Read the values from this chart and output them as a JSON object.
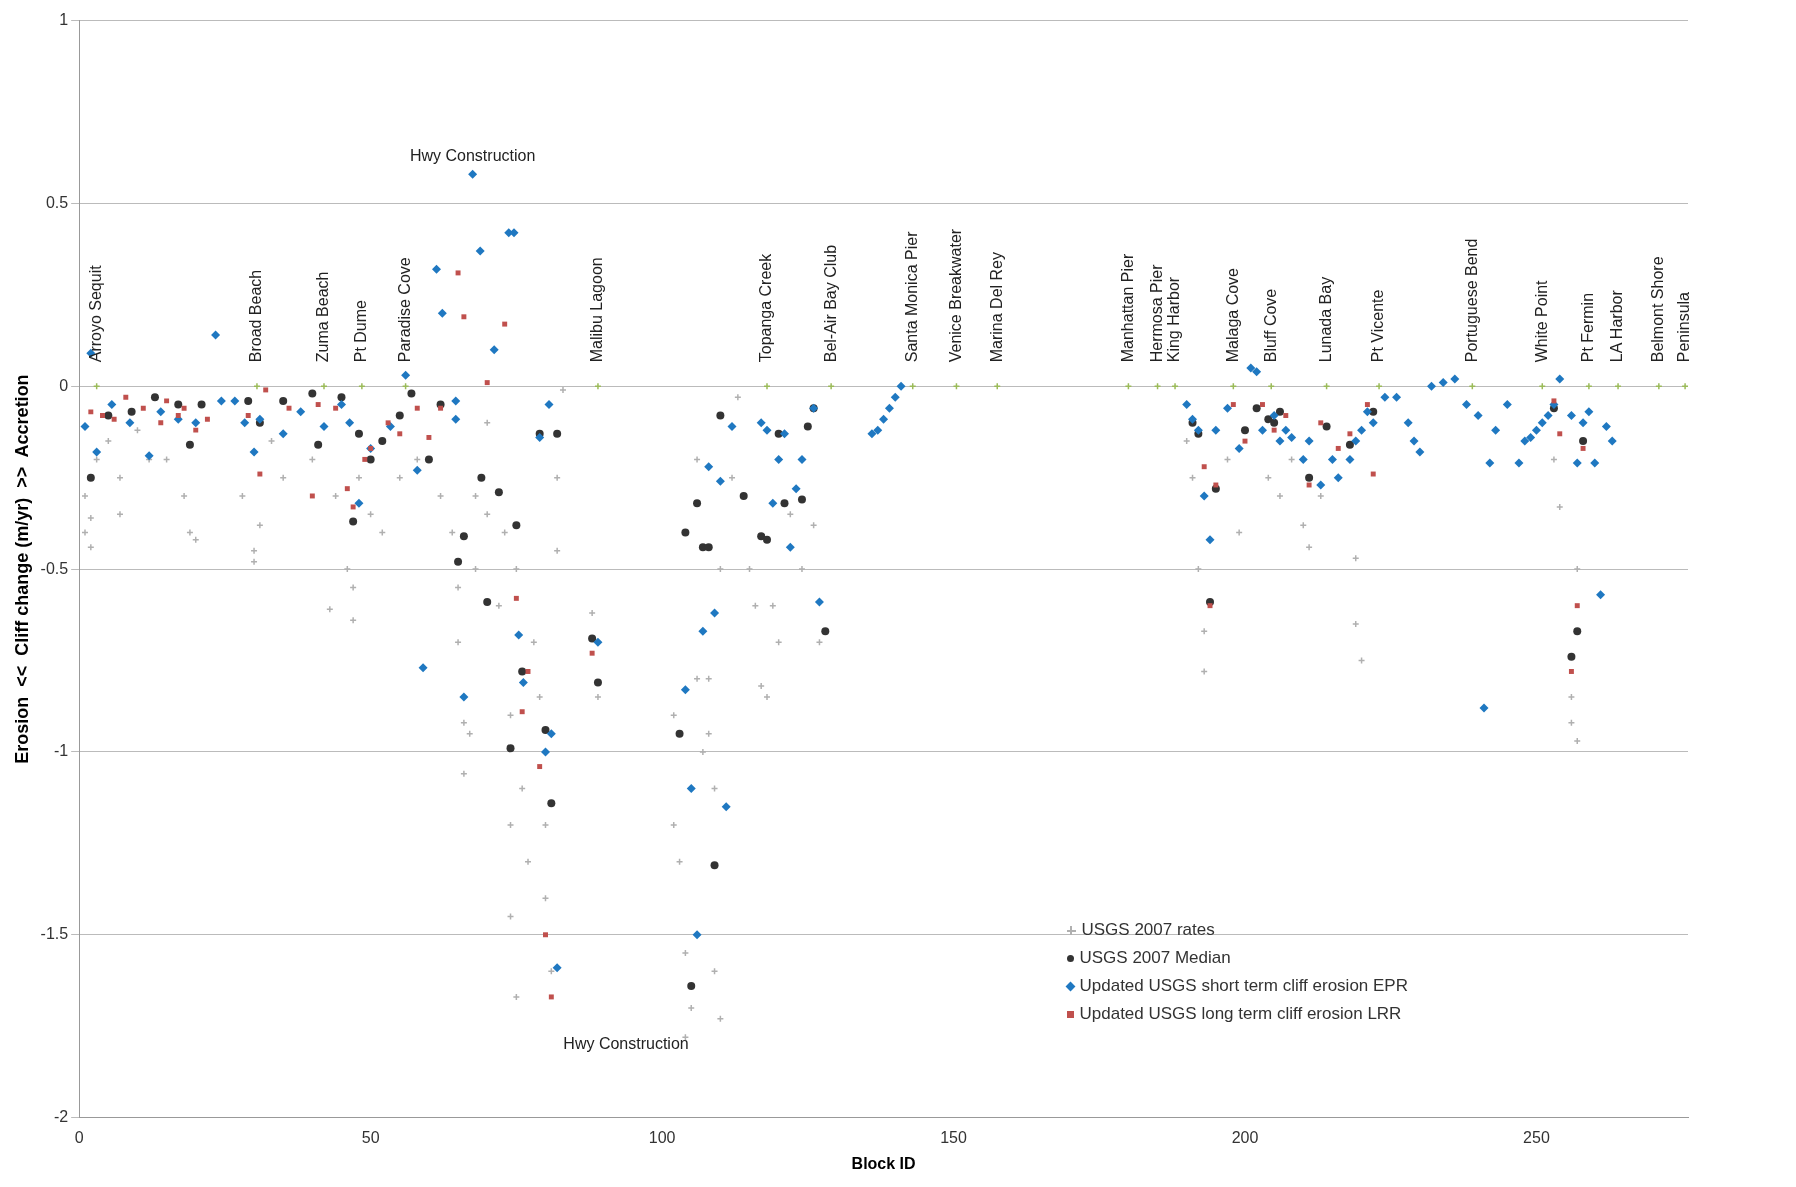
{
  "chart_data": {
    "type": "scatter",
    "xlabel": "Block ID",
    "ylabel": "Erosion  <<  Cliff change (m/yr)  >>  Accretion",
    "xlim": [
      0,
      276
    ],
    "xticks": [
      0,
      50,
      100,
      150,
      200,
      250
    ],
    "ylim": [
      -2,
      1
    ],
    "yticks": [
      -2,
      -1.5,
      -1,
      -0.5,
      0,
      0.5,
      1
    ],
    "grid": "y",
    "legend": "bottom right",
    "series": [
      {
        "name": "USGS 2007 rates",
        "color": "#b0b0b0",
        "marker": "cross",
        "x": [
          1,
          1,
          2,
          2,
          3,
          5,
          7,
          7,
          10,
          12,
          15,
          18,
          19,
          20,
          28,
          30,
          30,
          31,
          33,
          35,
          40,
          43,
          44,
          46,
          47,
          47,
          48,
          50,
          52,
          55,
          58,
          62,
          64,
          65,
          65,
          66,
          66,
          67,
          68,
          68,
          70,
          70,
          72,
          73,
          74,
          74,
          74,
          75,
          75,
          76,
          77,
          78,
          79,
          80,
          80,
          81,
          82,
          82,
          83,
          88,
          89,
          102,
          102,
          103,
          104,
          104,
          105,
          106,
          106,
          107,
          108,
          108,
          109,
          109,
          110,
          110,
          112,
          113,
          115,
          116,
          117,
          118,
          119,
          120,
          122,
          124,
          126,
          127,
          190,
          191,
          192,
          193,
          193,
          197,
          199,
          204,
          206,
          208,
          210,
          211,
          213,
          219,
          219,
          220,
          253,
          254,
          256,
          256,
          257,
          257
        ],
        "values": [
          -0.3,
          -0.4,
          -0.36,
          -0.44,
          -0.2,
          -0.15,
          -0.35,
          -0.25,
          -0.12,
          -0.2,
          -0.2,
          -0.3,
          -0.4,
          -0.42,
          -0.3,
          -0.45,
          -0.48,
          -0.38,
          -0.15,
          -0.25,
          -0.2,
          -0.61,
          -0.3,
          -0.5,
          -0.55,
          -0.64,
          -0.25,
          -0.35,
          -0.4,
          -0.25,
          -0.2,
          -0.3,
          -0.4,
          -0.55,
          -0.7,
          -0.92,
          -1.06,
          -0.95,
          -0.3,
          -0.5,
          -0.1,
          -0.35,
          -0.6,
          -0.4,
          -0.9,
          -1.2,
          -1.45,
          -1.67,
          -0.5,
          -1.1,
          -1.3,
          -0.7,
          -0.85,
          -1.2,
          -1.4,
          -1.6,
          -0.25,
          -0.45,
          -0.01,
          -0.62,
          -0.85,
          -0.9,
          -1.2,
          -1.3,
          -1.55,
          -1.78,
          -1.7,
          -0.2,
          -0.8,
          -1.0,
          -0.8,
          -0.95,
          -1.1,
          -1.6,
          -1.73,
          -0.5,
          -0.25,
          -0.03,
          -0.5,
          -0.6,
          -0.82,
          -0.85,
          -0.6,
          -0.7,
          -0.35,
          -0.5,
          -0.38,
          -0.7,
          -0.15,
          -0.25,
          -0.5,
          -0.67,
          -0.78,
          -0.2,
          -0.4,
          -0.25,
          -0.3,
          -0.2,
          -0.38,
          -0.44,
          -0.3,
          -0.47,
          -0.65,
          -0.75,
          -0.2,
          -0.33,
          -0.85,
          -0.92,
          -0.97,
          -0.5
        ]
      },
      {
        "name": "USGS 2007 Median",
        "color": "#333333",
        "marker": "circle",
        "x": [
          2,
          5,
          9,
          13,
          17,
          19,
          21,
          29,
          31,
          35,
          40,
          41,
          45,
          47,
          48,
          50,
          52,
          55,
          57,
          60,
          62,
          65,
          66,
          69,
          70,
          72,
          74,
          75,
          76,
          79,
          80,
          81,
          82,
          88,
          89,
          103,
          104,
          105,
          106,
          107,
          108,
          109,
          110,
          114,
          117,
          118,
          120,
          121,
          124,
          125,
          126,
          128,
          191,
          192,
          194,
          195,
          200,
          202,
          204,
          205,
          206,
          211,
          214,
          218,
          222,
          253,
          256,
          257,
          258
        ],
        "values": [
          -0.25,
          -0.08,
          -0.07,
          -0.03,
          -0.05,
          -0.16,
          -0.05,
          -0.04,
          -0.1,
          -0.04,
          -0.02,
          -0.16,
          -0.03,
          -0.37,
          -0.13,
          -0.2,
          -0.15,
          -0.08,
          -0.02,
          -0.2,
          -0.05,
          -0.48,
          -0.41,
          -0.25,
          -0.59,
          -0.29,
          -0.99,
          -0.38,
          -0.78,
          -0.13,
          -0.94,
          -1.14,
          -0.13,
          -0.69,
          -0.81,
          -0.95,
          -0.4,
          -1.64,
          -0.32,
          -0.44,
          -0.44,
          -1.31,
          -0.08,
          -0.3,
          -0.41,
          -0.42,
          -0.13,
          -0.32,
          -0.31,
          -0.11,
          -0.06,
          -0.67,
          -0.1,
          -0.13,
          -0.59,
          -0.28,
          -0.12,
          -0.06,
          -0.09,
          -0.1,
          -0.07,
          -0.25,
          -0.11,
          -0.16,
          -0.07,
          -0.06,
          -0.74,
          -0.67,
          -0.15
        ]
      },
      {
        "name": "Updated USGS short term cliff erosion EPR",
        "color": "#1f78c1",
        "marker": "diamond",
        "x": [
          1,
          2,
          3,
          5.6,
          8.7,
          12,
          14,
          17,
          20,
          23.4,
          24.4,
          26.7,
          28.4,
          30,
          31,
          35,
          38,
          42,
          45,
          46.4,
          48,
          50,
          53.4,
          56,
          58,
          59,
          61.3,
          62.3,
          64.6,
          64.6,
          66,
          67.5,
          68.8,
          71.2,
          73.7,
          74.6,
          75.4,
          76.2,
          79,
          80.6,
          80,
          81,
          82,
          89,
          104,
          105,
          106,
          107,
          108,
          109,
          110,
          111,
          112,
          117,
          118,
          119,
          120,
          121,
          122,
          123,
          124,
          126,
          127,
          136,
          137,
          138,
          139,
          140,
          141,
          190,
          191,
          192,
          193,
          194,
          195,
          197,
          199,
          201,
          202,
          203,
          205,
          206,
          207,
          208,
          210,
          211,
          213,
          215,
          216,
          218,
          219,
          220,
          221,
          222,
          224,
          226,
          228,
          229,
          230,
          232,
          234,
          236,
          238,
          240,
          241,
          242,
          243,
          245,
          247,
          248,
          249,
          250,
          251,
          252,
          253,
          254,
          256,
          257,
          258,
          259,
          260,
          261,
          262,
          263
        ],
        "values": [
          -0.11,
          0.09,
          -0.18,
          -0.05,
          -0.1,
          -0.19,
          -0.07,
          -0.09,
          -0.1,
          0.14,
          -0.04,
          -0.04,
          -0.1,
          -0.18,
          -0.09,
          -0.13,
          -0.07,
          -0.11,
          -0.05,
          -0.1,
          -0.32,
          -0.17,
          -0.11,
          0.03,
          -0.23,
          -0.77,
          0.32,
          0.2,
          -0.09,
          -0.04,
          -0.85,
          0.58,
          0.37,
          0.1,
          0.42,
          0.42,
          -0.68,
          -0.81,
          -0.14,
          -0.05,
          -1.0,
          -0.95,
          -1.59,
          -0.7,
          -0.83,
          -1.1,
          -1.5,
          -0.67,
          -0.22,
          -0.62,
          -0.26,
          -1.15,
          -0.11,
          -0.1,
          -0.12,
          -0.32,
          -0.2,
          -0.13,
          -0.44,
          -0.28,
          -0.2,
          -0.06,
          -0.59,
          -0.13,
          -0.12,
          -0.09,
          -0.06,
          -0.03,
          0.0,
          -0.05,
          -0.09,
          -0.12,
          -0.3,
          -0.42,
          -0.12,
          -0.06,
          -0.17,
          0.05,
          0.04,
          -0.12,
          -0.08,
          -0.15,
          -0.12,
          -0.14,
          -0.2,
          -0.15,
          -0.27,
          -0.2,
          -0.25,
          -0.2,
          -0.15,
          -0.12,
          -0.07,
          -0.1,
          -0.03,
          -0.03,
          -0.1,
          -0.15,
          -0.18,
          0.0,
          0.01,
          0.02,
          -0.05,
          -0.08,
          -0.88,
          -0.21,
          -0.12,
          -0.05,
          -0.21,
          -0.15,
          -0.14,
          -0.12,
          -0.1,
          -0.08,
          -0.05,
          0.02,
          -0.08,
          -0.21,
          -0.1,
          -0.07,
          -0.21,
          -0.57,
          -0.11,
          -0.15
        ]
      },
      {
        "name": "Updated USGS long term cliff erosion LRR",
        "color": "#c0504d",
        "marker": "square",
        "x": [
          2,
          4,
          6,
          8,
          11,
          14,
          15,
          17,
          18,
          20,
          22,
          29,
          31,
          32,
          36,
          40,
          41,
          44,
          46,
          47,
          49,
          50,
          53,
          55,
          58,
          60,
          62,
          65,
          66,
          70,
          73,
          75,
          76,
          77,
          79,
          80,
          81,
          88,
          193,
          194,
          195,
          198,
          200,
          203,
          205,
          207,
          211,
          213,
          216,
          218,
          221,
          222,
          253,
          254,
          256,
          257,
          258
        ],
        "values": [
          -0.07,
          -0.08,
          -0.09,
          -0.03,
          -0.06,
          -0.1,
          -0.04,
          -0.08,
          -0.06,
          -0.12,
          -0.09,
          -0.08,
          -0.24,
          -0.01,
          -0.06,
          -0.3,
          -0.05,
          -0.06,
          -0.28,
          -0.33,
          -0.2,
          -0.17,
          -0.1,
          -0.13,
          -0.06,
          -0.14,
          -0.06,
          0.31,
          0.19,
          0.01,
          0.17,
          -0.58,
          -0.89,
          -0.78,
          -1.04,
          -1.5,
          -1.67,
          -0.73,
          -0.22,
          -0.6,
          -0.27,
          -0.05,
          -0.15,
          -0.05,
          -0.12,
          -0.08,
          -0.27,
          -0.1,
          -0.17,
          -0.13,
          -0.05,
          -0.24,
          -0.04,
          -0.13,
          -0.78,
          -0.6,
          -0.17
        ]
      },
      {
        "color": "#9bbb59",
        "marker": "cross",
        "x": [
          3,
          30.5,
          42,
          48.5,
          56,
          89,
          118,
          129,
          143,
          150.5,
          157.5,
          180,
          185,
          188,
          198,
          204.5,
          214,
          223,
          239,
          251,
          259,
          264,
          271,
          275.5
        ],
        "values": [
          0,
          0,
          0,
          0,
          0,
          0,
          0,
          0,
          0,
          0,
          0,
          0,
          0,
          0,
          0,
          0,
          0,
          0,
          0,
          0,
          0,
          0,
          0,
          0
        ]
      }
    ],
    "annotations": [
      {
        "text": "Hwy Construction",
        "x": 67.5,
        "y": 0.58
      },
      {
        "text": "Hwy Construction",
        "x": 81,
        "y": -1.67
      },
      {
        "text": "Arroyo Sequit",
        "x": 3,
        "y": 0
      },
      {
        "text": "Broad Beach",
        "x": 30.5,
        "y": 0
      },
      {
        "text": "Zuma Beach",
        "x": 42,
        "y": 0
      },
      {
        "text": "Pt Dume",
        "x": 48.5,
        "y": 0
      },
      {
        "text": "Paradise Cove",
        "x": 56,
        "y": 0
      },
      {
        "text": "Malibu Lagoon",
        "x": 89,
        "y": 0
      },
      {
        "text": "Topanga Creek",
        "x": 118,
        "y": 0
      },
      {
        "text": "Bel-Air Bay Club",
        "x": 129,
        "y": 0
      },
      {
        "text": "Santa Monica Pier",
        "x": 143,
        "y": 0
      },
      {
        "text": "Venice Breakwater",
        "x": 150.5,
        "y": 0
      },
      {
        "text": "Marina Del Rey",
        "x": 157.5,
        "y": 0
      },
      {
        "text": "Manhattan Pier",
        "x": 180,
        "y": 0
      },
      {
        "text": "Hermosa Pier",
        "x": 185,
        "y": 0
      },
      {
        "text": "King Harbor",
        "x": 188,
        "y": 0
      },
      {
        "text": "Malaga Cove",
        "x": 198,
        "y": 0
      },
      {
        "text": "Bluff Cove",
        "x": 204.5,
        "y": 0
      },
      {
        "text": "Lunada Bay",
        "x": 214,
        "y": 0
      },
      {
        "text": "Pt Vicente",
        "x": 223,
        "y": 0
      },
      {
        "text": "Portuguese Bend",
        "x": 239,
        "y": 0
      },
      {
        "text": "White Point",
        "x": 251,
        "y": 0
      },
      {
        "text": "Pt Fermin",
        "x": 259,
        "y": 0
      },
      {
        "text": "LA Harbor",
        "x": 264,
        "y": 0
      },
      {
        "text": "Belmont Shore",
        "x": 271,
        "y": 0
      },
      {
        "text": "Peninsula",
        "x": 275.5,
        "y": 0
      }
    ]
  }
}
